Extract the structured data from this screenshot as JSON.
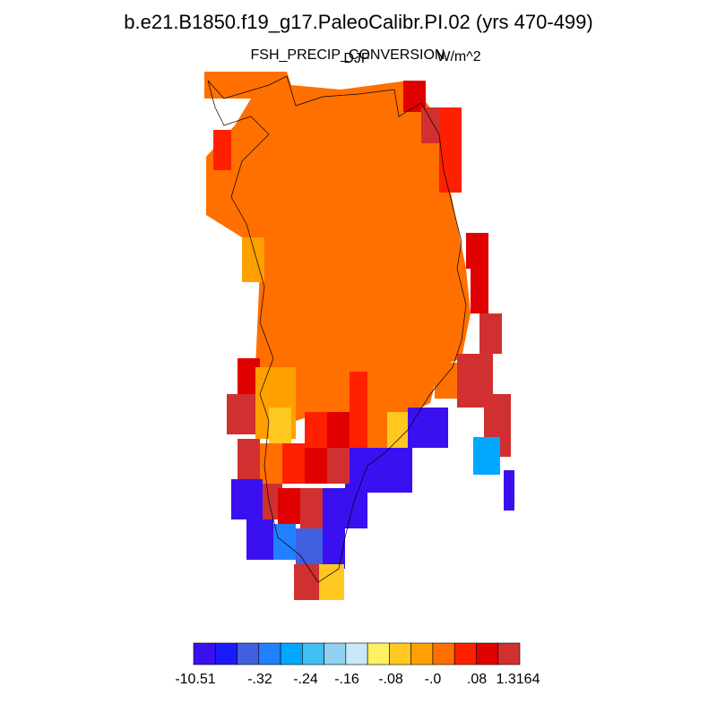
{
  "header": {
    "title": "b.e21.B1850.f19_g17.PaleoCalibr.PI.02 (yrs 470-499)",
    "variable": "FSH_PRECIP_CONVERSION",
    "season": "DJF",
    "units": "W/m^2"
  },
  "colorbar": {
    "colors": [
      "#3a10f0",
      "#1a1aff",
      "#4060e0",
      "#2080ff",
      "#00a8ff",
      "#40c0f0",
      "#90d0f0",
      "#c8e8f8",
      "#fff060",
      "#ffc820",
      "#ffa000",
      "#ff7000",
      "#ff2000",
      "#e00000",
      "#d03030"
    ],
    "labels": [
      "-10.51",
      "-.32",
      "-.24",
      "-.16",
      "-.08",
      "-.0",
      ".08",
      "1.3164"
    ]
  }
}
